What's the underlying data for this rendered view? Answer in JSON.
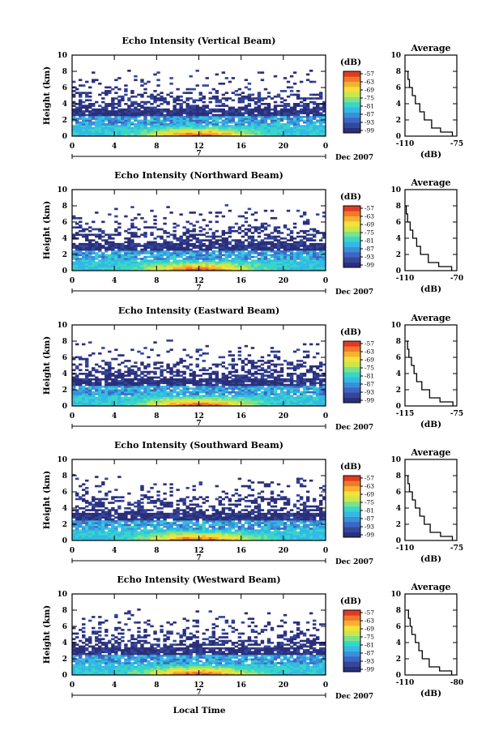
{
  "figure": {
    "xlabel": "Local Time",
    "month_label": "Dec 2007",
    "day_label": "7",
    "x_ticks": [
      "0",
      "4",
      "8",
      "12",
      "16",
      "20",
      "0"
    ],
    "y_ticks": [
      "0",
      "2",
      "4",
      "6",
      "8",
      "10"
    ],
    "ylabel": "Height (km)",
    "colorbar_unit": "(dB)",
    "avg_title": "Average",
    "avg_xlabel": "(dB)",
    "colorbar_ticks": [
      "-57",
      "-63",
      "-69",
      "-75",
      "-81",
      "-87",
      "-93",
      "-99"
    ],
    "colormap": [
      "#2b2f7a",
      "#33479b",
      "#3d66c2",
      "#3a8fd8",
      "#33b9e6",
      "#38d6c8",
      "#7fe08a",
      "#c8e84c",
      "#f6e03a",
      "#f8b030",
      "#f3782a",
      "#e03b22"
    ]
  },
  "panels": [
    {
      "title": "Echo Intensity (Vertical Beam)",
      "avg_ticks": [
        "-110",
        "-75"
      ]
    },
    {
      "title": "Echo Intensity (Northward Beam)",
      "avg_ticks": [
        "-110",
        "-70"
      ]
    },
    {
      "title": "Echo Intensity (Eastward Beam)",
      "avg_ticks": [
        "-115",
        "-75"
      ]
    },
    {
      "title": "Echo Intensity (Southward Beam)",
      "avg_ticks": [
        "-110",
        "-75"
      ]
    },
    {
      "title": "Echo Intensity (Westward Beam)",
      "avg_ticks": [
        "-110",
        "-80"
      ]
    }
  ],
  "chart_data": {
    "type": "heatmap",
    "x_range_hours": [
      0,
      24
    ],
    "y_range_km": [
      0,
      10
    ],
    "value_range_db": [
      -99,
      -57
    ],
    "colorbar_title": "(dB)",
    "average_profiles": [
      {
        "xlim": [
          -110,
          -75
        ],
        "height_km": [
          0,
          0.5,
          1,
          2,
          3,
          4,
          5,
          6,
          7,
          8
        ],
        "mean_db": [
          -78,
          -86,
          -92,
          -97,
          -100,
          -103,
          -105,
          -107,
          -108,
          -110
        ]
      },
      {
        "xlim": [
          -110,
          -70
        ],
        "height_km": [
          0,
          0.5,
          1,
          2,
          3,
          4,
          5,
          6,
          7,
          8
        ],
        "mean_db": [
          -74,
          -84,
          -92,
          -98,
          -101,
          -104,
          -106,
          -108,
          -109,
          -110
        ]
      },
      {
        "xlim": [
          -115,
          -75
        ],
        "height_km": [
          0,
          0.5,
          1,
          2,
          3,
          4,
          5,
          6,
          7,
          8
        ],
        "mean_db": [
          -78,
          -88,
          -96,
          -102,
          -106,
          -108,
          -110,
          -112,
          -113,
          -114
        ]
      },
      {
        "xlim": [
          -110,
          -75
        ],
        "height_km": [
          0,
          0.5,
          1,
          2,
          3,
          4,
          5,
          6,
          7,
          8
        ],
        "mean_db": [
          -78,
          -86,
          -93,
          -97,
          -100,
          -103,
          -105,
          -107,
          -108,
          -110
        ]
      },
      {
        "xlim": [
          -110,
          -80
        ],
        "height_km": [
          0,
          0.5,
          1,
          2,
          3,
          4,
          5,
          6,
          7,
          8
        ],
        "mean_db": [
          -83,
          -90,
          -96,
          -100,
          -102,
          -104,
          -106,
          -107,
          -108,
          -109
        ]
      }
    ]
  }
}
